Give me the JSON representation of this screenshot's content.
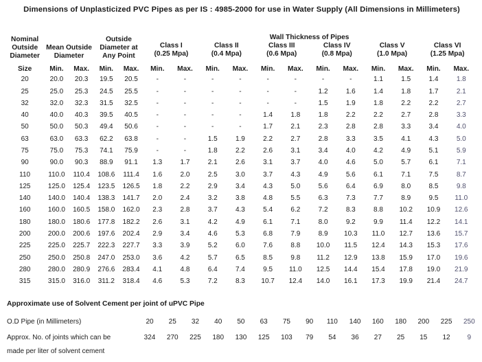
{
  "title": "Dimensions of Unplasticized PVC Pipes as per IS : 4985-2000 for use in Water Supply (All Dimensions in Millimeters)",
  "main_table": {
    "wall_thickness_header": "Wall  Thickness of Pipes",
    "col_headers": {
      "nominal": "Nominal Outside Diameter",
      "mean": "Mean Outside Diameter",
      "any_point": "Outside Diameter at Any Point"
    },
    "classes": [
      {
        "name": "Class I",
        "pressure": "(0.25 Mpa)"
      },
      {
        "name": "Class II",
        "pressure": "(0.4 Mpa)"
      },
      {
        "name": "Class III",
        "pressure": "(0.6 Mpa)"
      },
      {
        "name": "Class IV",
        "pressure": "(0.8 Mpa)"
      },
      {
        "name": "Class V",
        "pressure": "(1.0 Mpa)"
      },
      {
        "name": "Class VI",
        "pressure": "(1.25 Mpa)"
      }
    ],
    "size_label": "Size",
    "min_label": "Min.",
    "max_label": "Max.",
    "rows": [
      {
        "size": "20",
        "values": [
          "20.0",
          "20.3",
          "19.5",
          "20.5",
          "-",
          "-",
          "-",
          "-",
          "-",
          "-",
          "-",
          "-",
          "1.1",
          "1.5",
          "1.4",
          "1.8"
        ]
      },
      {
        "size": "25",
        "values": [
          "25.0",
          "25.3",
          "24.5",
          "25.5",
          "-",
          "-",
          "-",
          "-",
          "-",
          "-",
          "1.2",
          "1.6",
          "1.4",
          "1.8",
          "1.7",
          "2.1"
        ]
      },
      {
        "size": "32",
        "values": [
          "32.0",
          "32.3",
          "31.5",
          "32.5",
          "-",
          "-",
          "-",
          "-",
          "-",
          "-",
          "1.5",
          "1.9",
          "1.8",
          "2.2",
          "2.2",
          "2.7"
        ]
      },
      {
        "size": "40",
        "values": [
          "40.0",
          "40.3",
          "39.5",
          "40.5",
          "-",
          "-",
          "-",
          "-",
          "1.4",
          "1.8",
          "1.8",
          "2.2",
          "2.2",
          "2.7",
          "2.8",
          "3.3"
        ]
      },
      {
        "size": "50",
        "values": [
          "50.0",
          "50.3",
          "49.4",
          "50.6",
          "-",
          "-",
          "-",
          "-",
          "1.7",
          "2.1",
          "2.3",
          "2.8",
          "2.8",
          "3.3",
          "3.4",
          "4.0"
        ]
      },
      {
        "size": "63",
        "values": [
          "63.0",
          "63.3",
          "62.2",
          "63.8",
          "-",
          "-",
          "1.5",
          "1.9",
          "2.2",
          "2.7",
          "2.8",
          "3.3",
          "3.5",
          "4.1",
          "4.3",
          "5.0"
        ]
      },
      {
        "size": "75",
        "values": [
          "75.0",
          "75.3",
          "74.1",
          "75.9",
          "-",
          "-",
          "1.8",
          "2.2",
          "2.6",
          "3.1",
          "3.4",
          "4.0",
          "4.2",
          "4.9",
          "5.1",
          "5.9"
        ]
      },
      {
        "size": "90",
        "values": [
          "90.0",
          "90.3",
          "88.9",
          "91.1",
          "1.3",
          "1.7",
          "2.1",
          "2.6",
          "3.1",
          "3.7",
          "4.0",
          "4.6",
          "5.0",
          "5.7",
          "6.1",
          "7.1"
        ]
      },
      {
        "size": "110",
        "values": [
          "110.0",
          "110.4",
          "108.6",
          "111.4",
          "1.6",
          "2.0",
          "2.5",
          "3.0",
          "3.7",
          "4.3",
          "4.9",
          "5.6",
          "6.1",
          "7.1",
          "7.5",
          "8.7"
        ]
      },
      {
        "size": "125",
        "values": [
          "125.0",
          "125.4",
          "123.5",
          "126.5",
          "1.8",
          "2.2",
          "2.9",
          "3.4",
          "4.3",
          "5.0",
          "5.6",
          "6.4",
          "6.9",
          "8.0",
          "8.5",
          "9.8"
        ]
      },
      {
        "size": "140",
        "values": [
          "140.0",
          "140.4",
          "138.3",
          "141.7",
          "2.0",
          "2.4",
          "3.2",
          "3.8",
          "4.8",
          "5.5",
          "6.3",
          "7.3",
          "7.7",
          "8.9",
          "9.5",
          "11.0"
        ]
      },
      {
        "size": "160",
        "values": [
          "160.0",
          "160.5",
          "158.0",
          "162.0",
          "2.3",
          "2.8",
          "3.7",
          "4.3",
          "5.4",
          "6.2",
          "7.2",
          "8.3",
          "8.8",
          "10.2",
          "10.9",
          "12.6"
        ]
      },
      {
        "size": "180",
        "values": [
          "180.0",
          "180.6",
          "177.8",
          "182.2",
          "2.6",
          "3.1",
          "4.2",
          "4.9",
          "6.1",
          "7.1",
          "8.0",
          "9.2",
          "9.9",
          "11.4",
          "12.2",
          "14.1"
        ]
      },
      {
        "size": "200",
        "values": [
          "200.0",
          "200.6",
          "197.6",
          "202.4",
          "2.9",
          "3.4",
          "4.6",
          "5.3",
          "6.8",
          "7.9",
          "8.9",
          "10.3",
          "11.0",
          "12.7",
          "13.6",
          "15.7"
        ]
      },
      {
        "size": "225",
        "values": [
          "225.0",
          "225.7",
          "222.3",
          "227.7",
          "3.3",
          "3.9",
          "5.2",
          "6.0",
          "7.6",
          "8.8",
          "10.0",
          "11.5",
          "12.4",
          "14.3",
          "15.3",
          "17.6"
        ]
      },
      {
        "size": "250",
        "values": [
          "250.0",
          "250.8",
          "247.0",
          "253.0",
          "3.6",
          "4.2",
          "5.7",
          "6.5",
          "8.5",
          "9.8",
          "11.2",
          "12.9",
          "13.8",
          "15.9",
          "17.0",
          "19.6"
        ]
      },
      {
        "size": "280",
        "values": [
          "280.0",
          "280.9",
          "276.6",
          "283.4",
          "4.1",
          "4.8",
          "6.4",
          "7.4",
          "9.5",
          "11.0",
          "12.5",
          "14.4",
          "15.4",
          "17.8",
          "19.0",
          "21.9"
        ]
      },
      {
        "size": "315",
        "values": [
          "315.0",
          "316.0",
          "311.2",
          "318.4",
          "4.6",
          "5.3",
          "7.2",
          "8.3",
          "10.7",
          "12.4",
          "14.0",
          "16.1",
          "17.3",
          "19.9",
          "21.4",
          "24.7"
        ]
      }
    ]
  },
  "cement_table": {
    "heading": "Approximate use of Solvent Cement per joint of uPVC Pipe",
    "od_label": "O.D Pipe (in Millimeters)",
    "joints_label_line1": "Approx. No. of joints which can be",
    "joints_label_line2": "made per liter of solvent cement",
    "od_values": [
      "20",
      "25",
      "32",
      "40",
      "50",
      "63",
      "75",
      "90",
      "110",
      "140",
      "160",
      "180",
      "200",
      "225",
      "250"
    ],
    "joint_values": [
      "324",
      "270",
      "225",
      "180",
      "130",
      "125",
      "103",
      "79",
      "54",
      "36",
      "27",
      "25",
      "15",
      "12",
      "9"
    ]
  },
  "colors": {
    "text": "#1b1b1b",
    "last_column_tint": "#50506e",
    "background": "#ffffff"
  }
}
